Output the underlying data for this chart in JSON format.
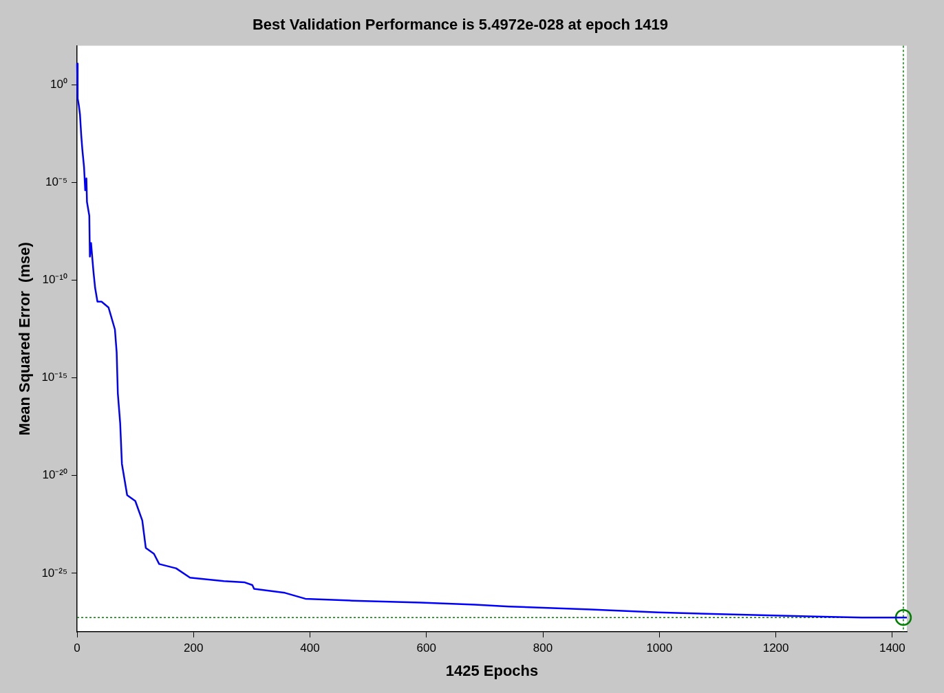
{
  "chart_data": {
    "type": "line",
    "title": "Best Validation Performance is 5.4972e-028 at epoch 1419",
    "xlabel": "1425 Epochs",
    "ylabel": "Mean Squared Error  (mse)",
    "xlim": [
      0,
      1425
    ],
    "xticks": [
      0,
      200,
      400,
      600,
      800,
      1000,
      1200,
      1400
    ],
    "ylim": [
      1e-28,
      100
    ],
    "yticks": [
      {
        "value": 1,
        "label": "10⁰"
      },
      {
        "value": 1e-05,
        "label": "10⁻⁵"
      },
      {
        "value": 1e-10,
        "label": "10⁻¹⁰"
      },
      {
        "value": 1e-15,
        "label": "10⁻¹⁵"
      },
      {
        "value": 1e-20,
        "label": "10⁻²⁰"
      },
      {
        "value": 1e-25,
        "label": "10⁻²⁵"
      }
    ],
    "log": "y",
    "grid": false,
    "series": [
      {
        "color": "#0000ff",
        "marker": "none",
        "x": [
          0,
          1,
          3,
          5,
          7,
          9,
          12,
          14,
          16,
          17,
          21,
          22,
          24,
          28,
          31,
          35,
          42,
          54,
          57,
          65,
          68,
          70,
          74,
          77,
          86,
          100,
          112,
          118,
          132,
          141,
          170,
          194,
          252,
          287,
          301,
          304,
          357,
          392,
          473,
          590,
          683,
          742,
          882,
          998,
          1115,
          1255,
          1348,
          1425
        ],
        "values": [
          12,
          0.2,
          0.09,
          0.03,
          0.003,
          0.0005,
          6e-05,
          4e-06,
          1.6e-05,
          1e-06,
          2e-07,
          1.6e-09,
          8e-09,
          3e-10,
          4e-11,
          8e-12,
          8e-12,
          4e-12,
          2e-12,
          3e-13,
          2e-14,
          1.6e-16,
          5e-18,
          4e-20,
          1e-21,
          5e-22,
          5e-23,
          2e-24,
          1e-24,
          3e-25,
          1.8e-25,
          6e-26,
          4e-26,
          3.5e-26,
          2.5e-26,
          1.6e-26,
          1e-26,
          5e-27,
          4e-27,
          3.2e-27,
          2.5e-27,
          2e-27,
          1.4e-27,
          1e-27,
          8e-28,
          6.3e-28,
          5.5e-28,
          5.4972e-28
        ]
      },
      {
        "type": "scatter",
        "color": "#008000",
        "marker": "circle",
        "x": [
          1419
        ],
        "values": [
          5.4972e-28
        ]
      }
    ],
    "ref_lines": [
      {
        "axis": "y",
        "value": 5.4972e-28,
        "color": "#008000",
        "line_style": "dotted"
      },
      {
        "axis": "x",
        "value": 1419,
        "color": "#008000",
        "line_style": "dotted"
      }
    ]
  }
}
